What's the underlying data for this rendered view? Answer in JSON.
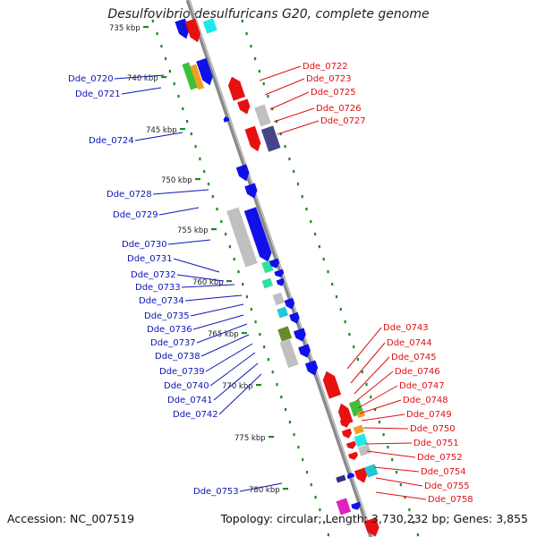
{
  "title": "Desulfovibrio desulfuricans G20, complete genome",
  "accession_label": "Accession: NC_007519",
  "stats_label": "Topology: circular; Length: 3,730,232 bp; Genes: 3,855",
  "colors": {
    "forward_label": "#0b16b8",
    "reverse_label": "#e01010",
    "backbone": "#8a8a8a",
    "tick": "#1f8a1f"
  },
  "kbp_marks": [
    "735 kbp",
    "740 kbp",
    "745 kbp",
    "750 kbp",
    "755 kbp",
    "760 kbp",
    "765 kbp",
    "770 kbp",
    "775 kbp",
    "780 kbp"
  ],
  "forward_genes": [
    "Dde_0720",
    "Dde_0721",
    "Dde_0724",
    "Dde_0728",
    "Dde_0729",
    "Dde_0730",
    "Dde_0731",
    "Dde_0732",
    "Dde_0733",
    "Dde_0734",
    "Dde_0735",
    "Dde_0736",
    "Dde_0737",
    "Dde_0738",
    "Dde_0739",
    "Dde_0740",
    "Dde_0741",
    "Dde_0742",
    "Dde_0753"
  ],
  "reverse_genes": [
    "Dde_0722",
    "Dde_0723",
    "Dde_0725",
    "Dde_0726",
    "Dde_0727",
    "Dde_0743",
    "Dde_0744",
    "Dde_0745",
    "Dde_0746",
    "Dde_0747",
    "Dde_0748",
    "Dde_0749",
    "Dde_0750",
    "Dde_0751",
    "Dde_0752",
    "Dde_0754",
    "Dde_0755",
    "Dde_0758"
  ]
}
